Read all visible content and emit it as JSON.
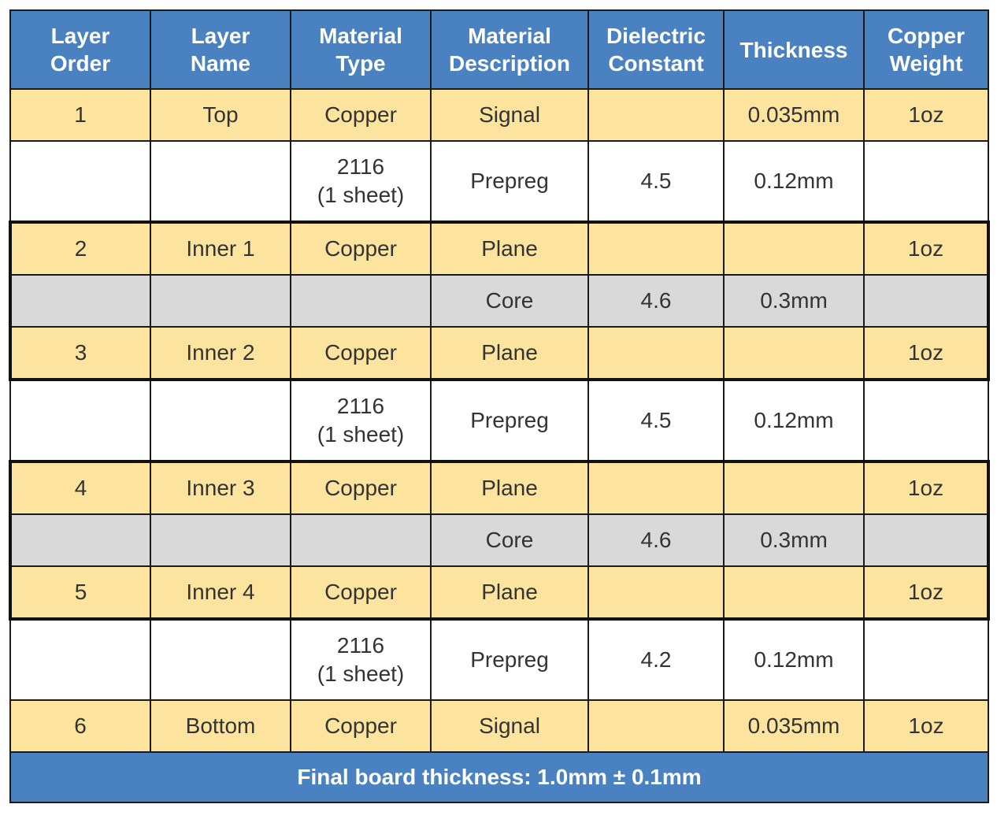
{
  "chart_data": {
    "type": "table",
    "columns": [
      "Layer\nOrder",
      "Layer\nName",
      "Material\nType",
      "Material\nDescription",
      "Dielectric\nConstant",
      "Thickness",
      "Copper\nWeight"
    ],
    "rows": [
      {
        "kind": "copper",
        "cells": [
          "1",
          "Top",
          "Copper",
          "Signal",
          "",
          "0.035mm",
          "1oz"
        ]
      },
      {
        "kind": "prepreg",
        "cells": [
          "",
          "",
          "2116\n(1 sheet)",
          "Prepreg",
          "4.5",
          "0.12mm",
          ""
        ]
      },
      {
        "kind": "copper",
        "group": "top",
        "cells": [
          "2",
          "Inner 1",
          "Copper",
          "Plane",
          "",
          "",
          "1oz"
        ]
      },
      {
        "kind": "core",
        "group": "mid",
        "cells": [
          "",
          "",
          "",
          "Core",
          "4.6",
          "0.3mm",
          ""
        ]
      },
      {
        "kind": "copper",
        "group": "bot",
        "cells": [
          "3",
          "Inner 2",
          "Copper",
          "Plane",
          "",
          "",
          "1oz"
        ]
      },
      {
        "kind": "prepreg",
        "cells": [
          "",
          "",
          "2116\n(1 sheet)",
          "Prepreg",
          "4.5",
          "0.12mm",
          ""
        ]
      },
      {
        "kind": "copper",
        "group": "top",
        "cells": [
          "4",
          "Inner 3",
          "Copper",
          "Plane",
          "",
          "",
          "1oz"
        ]
      },
      {
        "kind": "core",
        "group": "mid",
        "cells": [
          "",
          "",
          "",
          "Core",
          "4.6",
          "0.3mm",
          ""
        ]
      },
      {
        "kind": "copper",
        "group": "bot",
        "cells": [
          "5",
          "Inner 4",
          "Copper",
          "Plane",
          "",
          "",
          "1oz"
        ]
      },
      {
        "kind": "prepreg",
        "cells": [
          "",
          "",
          "2116\n(1 sheet)",
          "Prepreg",
          "4.2",
          "0.12mm",
          ""
        ]
      },
      {
        "kind": "copper",
        "cells": [
          "6",
          "Bottom",
          "Copper",
          "Signal",
          "",
          "0.035mm",
          "1oz"
        ]
      }
    ],
    "footer": "Final board thickness: 1.0mm ± 0.1mm"
  },
  "colors": {
    "header_bg": "#4a81c0",
    "copper_bg": "#fce49f",
    "core_bg": "#d9d9d9",
    "prepreg_bg": "#ffffff"
  }
}
